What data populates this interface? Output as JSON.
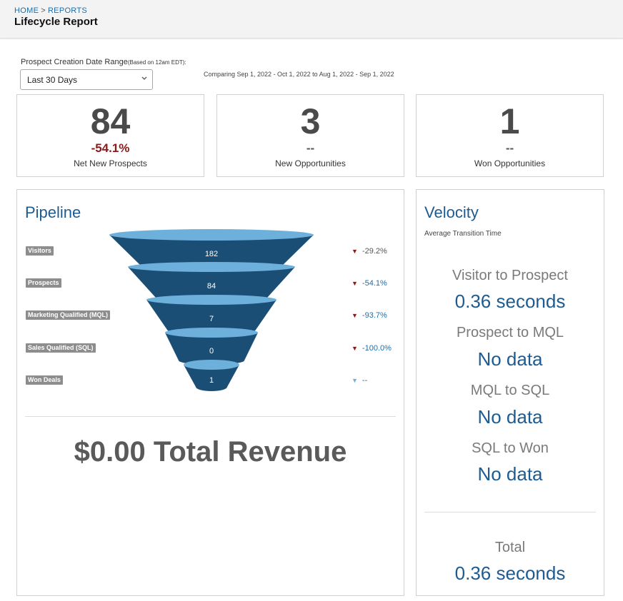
{
  "header": {
    "breadcrumb": [
      {
        "label": "HOME"
      },
      {
        "label": "REPORTS"
      }
    ],
    "breadcrumb_separator": ">",
    "title": "Lifecycle Report"
  },
  "filter": {
    "label": "Prospect Creation Date Range",
    "label_note": "(Based on 12am EDT):",
    "selected": "Last 30 Days",
    "comparing": "Comparing Sep 1, 2022 - Oct 1, 2022 to Aug 1, 2022 - Sep 1, 2022"
  },
  "stats": [
    {
      "value": "84",
      "change": "-54.1%",
      "label": "Net New Prospects"
    },
    {
      "value": "3",
      "change": "--",
      "label": "New Opportunities"
    },
    {
      "value": "1",
      "change": "--",
      "label": "Won Opportunities"
    }
  ],
  "pipeline": {
    "title": "Pipeline",
    "stages": [
      {
        "label": "Visitors",
        "count": "182",
        "change": "-29.2%"
      },
      {
        "label": "Prospects",
        "count": "84",
        "change": "-54.1%"
      },
      {
        "label": "Marketing Qualified (MQL)",
        "count": "7",
        "change": "-93.7%"
      },
      {
        "label": "Sales Qualified (SQL)",
        "count": "0",
        "change": "-100.0%"
      },
      {
        "label": "Won Deals",
        "count": "1",
        "change": "--"
      }
    ],
    "revenue": "$0.00 Total Revenue"
  },
  "velocity": {
    "title": "Velocity",
    "subtitle": "Average Transition Time",
    "items": [
      {
        "label": "Visitor to Prospect",
        "value": "0.36 seconds"
      },
      {
        "label": "Prospect to MQL",
        "value": "No data"
      },
      {
        "label": "MQL to SQL",
        "value": "No data"
      },
      {
        "label": "SQL to Won",
        "value": "No data"
      }
    ],
    "total_label": "Total",
    "total_value": "0.36 seconds"
  },
  "colors": {
    "funnel_dark": "#1b4e74",
    "funnel_light": "#6db0dc",
    "negative": "#8b1a1a",
    "link": "#1a6fb0"
  }
}
